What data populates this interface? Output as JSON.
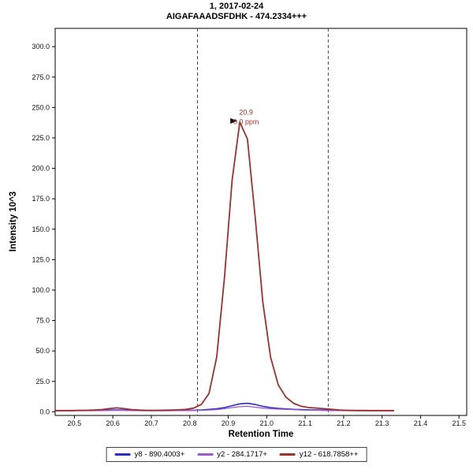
{
  "chart_data": {
    "type": "line",
    "title": "1, 2017-02-24",
    "subtitle": "AIGAFAAADSFDHK - 474.2334+++",
    "xlabel": "Retention Time",
    "ylabel": "Intensity 10^3",
    "xlim": [
      20.45,
      21.52
    ],
    "ylim": [
      -3,
      315
    ],
    "xticks": [
      20.5,
      20.6,
      20.7,
      20.8,
      20.9,
      21.0,
      21.1,
      21.2,
      21.3,
      21.4,
      21.5
    ],
    "yticks": [
      0.0,
      25.0,
      50.0,
      75.0,
      100.0,
      125.0,
      150.0,
      175.0,
      200.0,
      225.0,
      250.0,
      275.0,
      300.0
    ],
    "grid": false,
    "legend_position": "bottom",
    "integration_boundaries": [
      20.82,
      21.16
    ],
    "annotation": {
      "rt": "20.9",
      "ppm": "0.0 ppm",
      "x": 20.93,
      "y": 239,
      "color": "#a0302b",
      "arrow_color": "#111111"
    },
    "x": [
      20.45,
      20.47,
      20.49,
      20.51,
      20.53,
      20.55,
      20.57,
      20.59,
      20.61,
      20.63,
      20.65,
      20.67,
      20.69,
      20.71,
      20.73,
      20.75,
      20.77,
      20.79,
      20.81,
      20.83,
      20.85,
      20.87,
      20.89,
      20.91,
      20.93,
      20.95,
      20.97,
      20.99,
      21.01,
      21.03,
      21.05,
      21.07,
      21.09,
      21.11,
      21.13,
      21.15,
      21.17,
      21.19,
      21.21,
      21.23,
      21.25,
      21.27,
      21.29,
      21.31,
      21.33
    ],
    "series": [
      {
        "name": "y8 - 890.4003+",
        "color": "#2b2bc9",
        "width": 1.6,
        "values": [
          1,
          1,
          1,
          1,
          1.1,
          1.1,
          1.2,
          1.4,
          1.5,
          1.4,
          1.2,
          1.1,
          1,
          1,
          1,
          1.1,
          1.1,
          1.2,
          1.3,
          1.5,
          2,
          2.5,
          3.5,
          5,
          6.5,
          7,
          6,
          4.5,
          3.5,
          2.8,
          2.4,
          2,
          1.8,
          1.6,
          1.5,
          1.4,
          1.3,
          1.2,
          1.2,
          1.1,
          1.1,
          1,
          1,
          1,
          1
        ]
      },
      {
        "name": "y2 - 284.1717+",
        "color": "#9b59d0",
        "width": 1.3,
        "values": [
          0.8,
          0.8,
          0.8,
          0.9,
          0.9,
          0.9,
          1,
          1.1,
          1.2,
          1.1,
          1,
          0.9,
          0.9,
          0.9,
          0.9,
          0.9,
          1,
          1,
          1.1,
          1.2,
          1.5,
          1.8,
          2.5,
          3.5,
          4.2,
          4.5,
          3.8,
          3,
          2.5,
          2.2,
          2,
          1.8,
          1.5,
          1.3,
          1.2,
          1.1,
          1,
          1,
          0.9,
          0.9,
          0.9,
          0.8,
          0.8,
          0.8,
          0.8
        ]
      },
      {
        "name": "y12 - 618.7858++",
        "color": "#a0302b",
        "width": 1.8,
        "values": [
          1,
          1,
          1,
          1.2,
          1.2,
          1.4,
          1.8,
          2.6,
          3.2,
          2.6,
          1.8,
          1.4,
          1.2,
          1.2,
          1.3,
          1.4,
          1.6,
          2,
          3,
          6,
          15,
          45,
          110,
          190,
          238,
          224,
          160,
          90,
          45,
          22,
          12,
          7,
          4.5,
          3.5,
          3,
          2.5,
          2,
          1.5,
          1.2,
          1,
          1,
          1,
          1,
          1,
          1
        ]
      }
    ]
  }
}
